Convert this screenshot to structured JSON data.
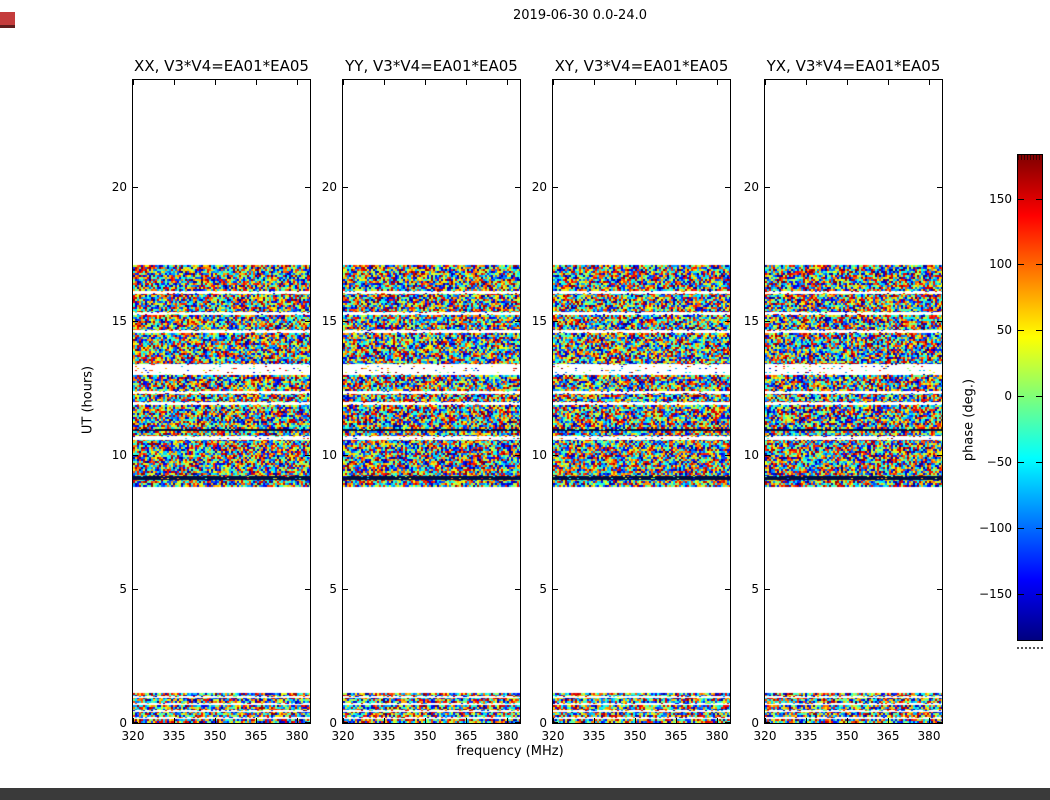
{
  "figure": {
    "suptitle": "2019-06-30 0.0-24.0",
    "background": "#ffffff",
    "artifacts": {
      "bottom_bar_color": "#3a3a3a",
      "corner_icon_color": "#c43c3c"
    }
  },
  "chart_data": {
    "type": "heatmap",
    "title": "2019-06-30 0.0-24.0",
    "xlabel": "frequency (MHz)",
    "ylabel": "UT (hours)",
    "xlim": [
      320,
      384.7
    ],
    "ylim": [
      0,
      24
    ],
    "xticks": [
      "320",
      "335",
      "350",
      "365",
      "380"
    ],
    "xtick_values": [
      320,
      335,
      350,
      365,
      380
    ],
    "yticks": [
      "0",
      "5",
      "10",
      "15",
      "20"
    ],
    "ytick_values": [
      0,
      5,
      10,
      15,
      20
    ],
    "panels": [
      {
        "title": "XX, V3*V4=EA01*EA05",
        "polarization": "XX",
        "baseline": "V3*V4=EA01*EA05"
      },
      {
        "title": "YY, V3*V4=EA01*EA05",
        "polarization": "YY",
        "baseline": "V3*V4=EA01*EA05"
      },
      {
        "title": "XY, V3*V4=EA01*EA05",
        "polarization": "XY",
        "baseline": "V3*V4=EA01*EA05"
      },
      {
        "title": "YX, V3*V4=EA01*EA05",
        "polarization": "YX",
        "baseline": "V3*V4=EA01*EA05"
      }
    ],
    "noise": {
      "description": "uniform random interferometer phase noise (-180..180 deg) rendered with jet colormap; same band structure in all four panels",
      "bands": [
        {
          "ut_start": 8.8,
          "ut_end": 17.1,
          "white_lines": [
            {
              "ut": 16.05,
              "h": 3,
              "dots": 0.15
            },
            {
              "ut": 15.27,
              "h": 3,
              "dots": 0.15
            },
            {
              "ut": 14.6,
              "h": 3,
              "dots": 0.15
            },
            {
              "ut": 13.2,
              "h": 11,
              "dots": 0.12
            },
            {
              "ut": 12.32,
              "h": 3,
              "dots": 0.15
            },
            {
              "ut": 11.94,
              "h": 3,
              "dots": 0.15
            },
            {
              "ut": 10.64,
              "h": 4,
              "dots": 0.15
            }
          ],
          "dark_lines": [
            {
              "ut": 10.93,
              "h": 2
            },
            {
              "ut": 9.15,
              "h": 4
            }
          ]
        },
        {
          "ut_start": 0.04,
          "ut_end": 1.12,
          "white_lines": [
            {
              "ut": 0.97,
              "h": 2,
              "dots": 0.3
            },
            {
              "ut": 0.7,
              "h": 2,
              "dots": 0.3
            },
            {
              "ut": 0.45,
              "h": 2,
              "dots": 0.3
            },
            {
              "ut": 0.2,
              "h": 2,
              "dots": 0.3
            }
          ],
          "dark_lines": []
        }
      ]
    },
    "colorbar": {
      "label": "phase (deg.)",
      "tick_labels": [
        "150",
        "100",
        "50",
        "0",
        "−50",
        "−100",
        "−150"
      ],
      "tick_values": [
        150,
        100,
        50,
        0,
        -50,
        -100,
        -150
      ],
      "vmin": -180,
      "vmax": 180,
      "colormap": "jet"
    }
  }
}
